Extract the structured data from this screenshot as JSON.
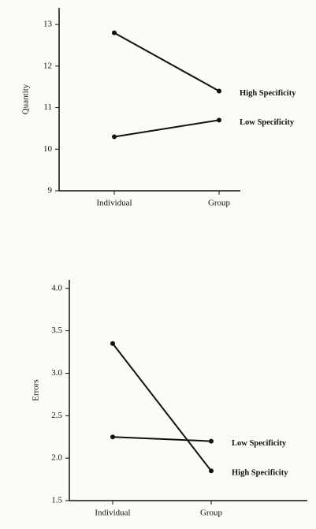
{
  "chart_data": [
    {
      "type": "line",
      "y_label": "Quantity",
      "categories": [
        "Individual",
        "Group"
      ],
      "series": [
        {
          "name": "High Specificity",
          "color": "#111111",
          "values": [
            12.8,
            11.4
          ]
        },
        {
          "name": "Low Specificity",
          "color": "#111111",
          "values": [
            10.3,
            10.7
          ]
        }
      ],
      "ylim": [
        9,
        13.4
      ],
      "yticks": [
        9,
        10,
        11,
        12,
        13
      ]
    },
    {
      "type": "line",
      "y_label": "Errors",
      "categories": [
        "Individual",
        "Group"
      ],
      "series": [
        {
          "name": "Low Specificity",
          "color": "#111111",
          "values": [
            2.25,
            2.2
          ]
        },
        {
          "name": "High Specificity",
          "color": "#111111",
          "values": [
            3.35,
            1.85
          ]
        }
      ],
      "ylim": [
        1.5,
        4.1
      ],
      "yticks": [
        1.5,
        {
          "value": 2,
          "label": "2.0"
        },
        2.5,
        {
          "value": 3,
          "label": "3.0"
        },
        3.5,
        {
          "value": 4,
          "label": "4.0"
        }
      ]
    }
  ]
}
